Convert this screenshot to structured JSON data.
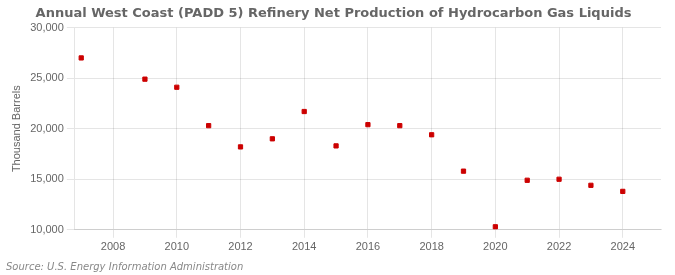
{
  "chart_data": {
    "type": "scatter",
    "title": "Annual West Coast (PADD 5) Refinery Net Production of Hydrocarbon Gas Liquids",
    "ylabel": "Thousand Barrels",
    "annotations": [
      "Source: U.S. Energy Information Administration"
    ],
    "x": [
      2007,
      2009,
      2010,
      2011,
      2012,
      2013,
      2014,
      2015,
      2016,
      2017,
      2018,
      2019,
      2020,
      2021,
      2022,
      2023,
      2024
    ],
    "values": [
      27000,
      24900,
      24100,
      20300,
      18200,
      19000,
      21700,
      18300,
      20400,
      20300,
      19400,
      15800,
      10300,
      14900,
      15000,
      14400,
      13800
    ],
    "color": "#cc0000",
    "marker": "square",
    "xlim": [
      2006.8,
      2025.2
    ],
    "xticks": [
      2008,
      2010,
      2012,
      2014,
      2016,
      2018,
      2020,
      2022,
      2024
    ],
    "ylim": [
      10000,
      30000
    ],
    "yticks": [
      {
        "value": 10000,
        "label": "10,000"
      },
      {
        "value": 15000,
        "label": "15,000"
      },
      {
        "value": 20000,
        "label": "20,000"
      },
      {
        "value": 25000,
        "label": "25,000"
      },
      {
        "value": 30000,
        "label": "30,000"
      }
    ],
    "grid": true
  }
}
